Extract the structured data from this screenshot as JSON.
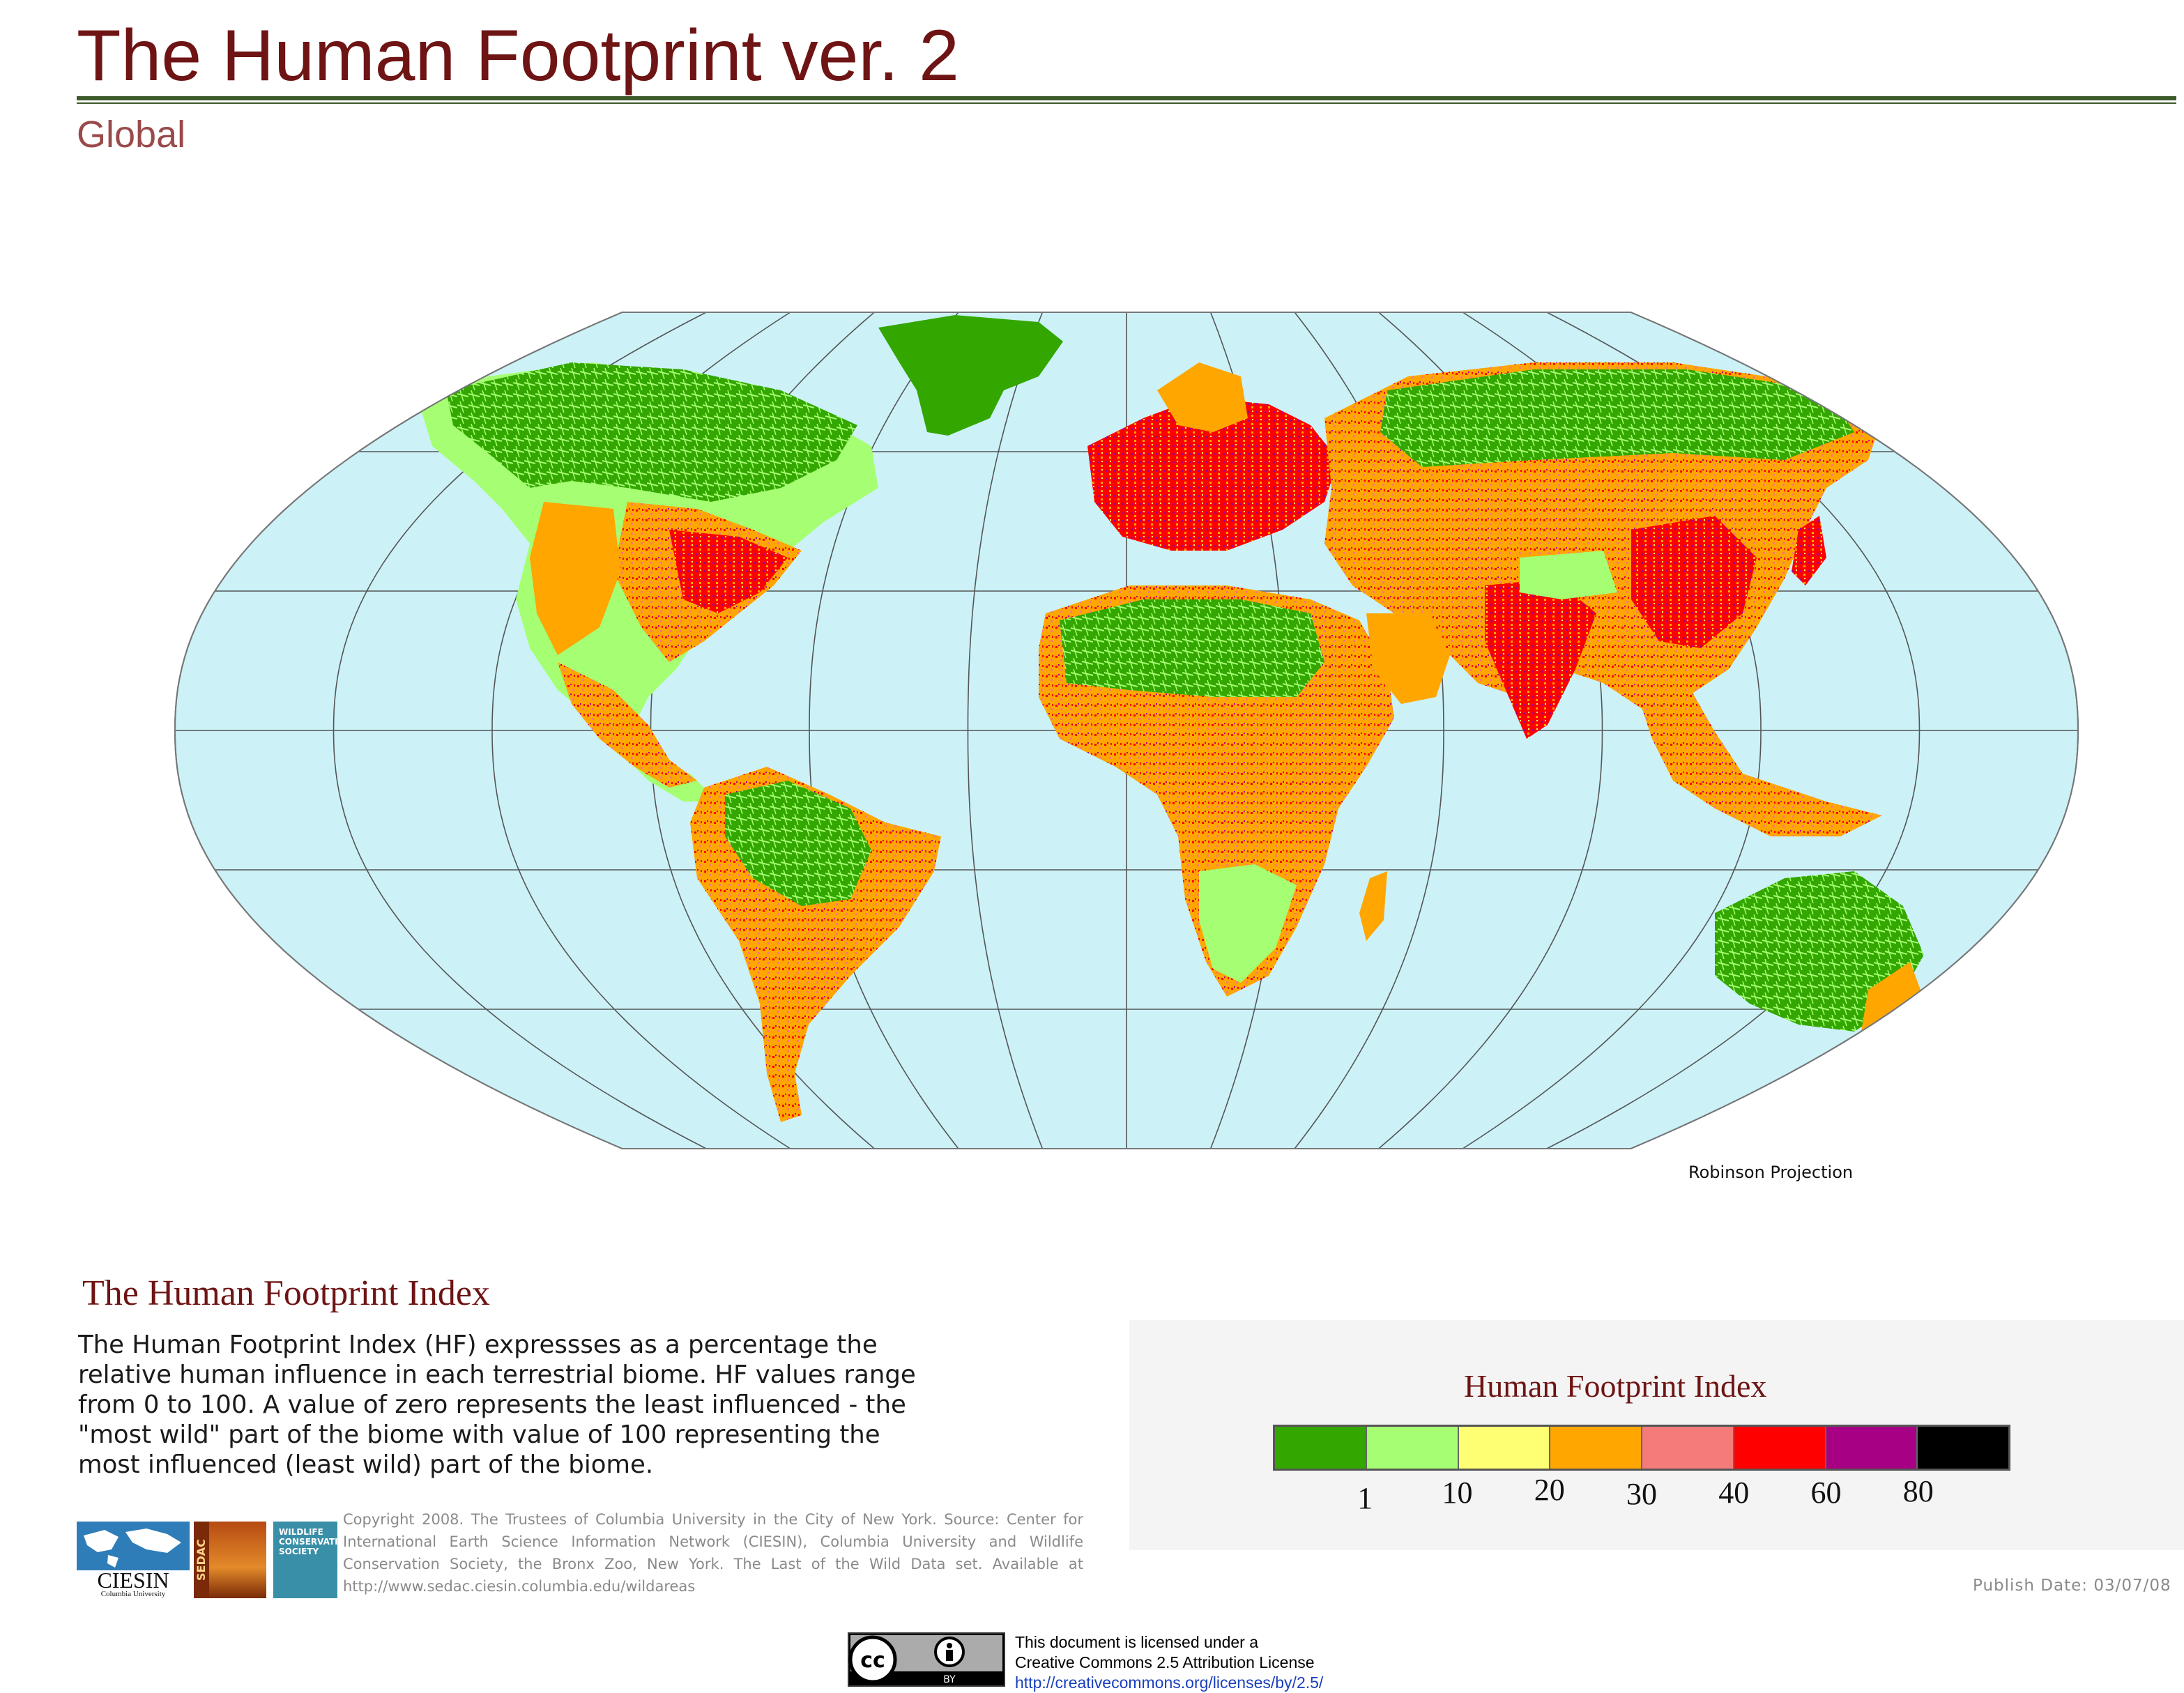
{
  "header": {
    "title": "The Human Footprint ver. 2",
    "subtitle": "Global"
  },
  "map": {
    "projection_label": "Robinson Projection",
    "ocean_color": "#ccf2f8",
    "graticule_color": "#555555"
  },
  "index_section": {
    "heading": "The Human Footprint Index",
    "description": "The Human Footprint Index (HF) expressses as a percentage the relative human influence in each terrestrial biome. HF values range from 0 to 100. A value of zero represents the least influenced - the \"most wild\" part of the biome with value of 100 representing the most influenced (least wild) part of the biome."
  },
  "credits": {
    "copyright": "Copyright 2008. The Trustees of Columbia University in the City of New York. Source: Center for International Earth Science Information Network (CIESIN), Columbia University and Wildlife Conservation Society, the Bronx Zoo, New York. The Last of the Wild Data set. Available at http://www.sedac.ciesin.columbia.edu/wildareas",
    "logos": {
      "ciesin": "CIESIN",
      "ciesin_sub": "Columbia University",
      "sedac": "SEDAC",
      "wcs": "WILDLIFE CONSERVATION SOCIETY"
    }
  },
  "legend": {
    "title": "Human Footprint Index",
    "colors": [
      "#33a600",
      "#a6ff73",
      "#ffff73",
      "#ffa600",
      "#f57a7a",
      "#ff0000",
      "#a80084",
      "#000000"
    ],
    "ticks": [
      "1",
      "10",
      "20",
      "30",
      "40",
      "60",
      "80"
    ]
  },
  "publish_date": "Publish Date: 03/07/08",
  "license": {
    "line1": "This document is licensed under a",
    "line2": "Creative Commons 2.5 Attribution License",
    "url": "http://creativecommons.org/licenses/by/2.5/",
    "badge_text": "BY"
  }
}
